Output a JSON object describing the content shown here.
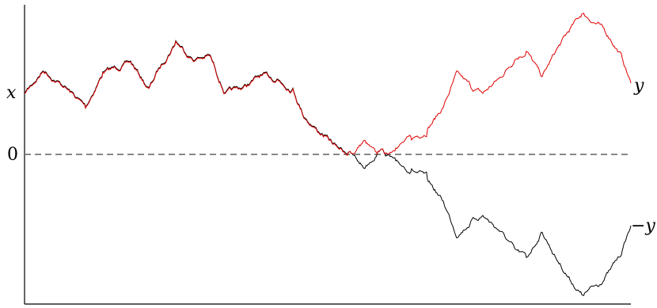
{
  "labels": {
    "x": "x",
    "zero": "0",
    "y": "y",
    "neg_y": "−y"
  },
  "colors": {
    "reflected_path": "#e00000",
    "original_path": "#000000",
    "zero_line": "#777777",
    "axes": "#000000"
  },
  "diagram": {
    "description_type": "reflection-principle",
    "paths": [
      {
        "name": "original",
        "color_key": "original_path",
        "ends_at_label": "neg_y"
      },
      {
        "name": "reflected",
        "color_key": "reflected_path",
        "ends_at_label": "y"
      }
    ]
  }
}
